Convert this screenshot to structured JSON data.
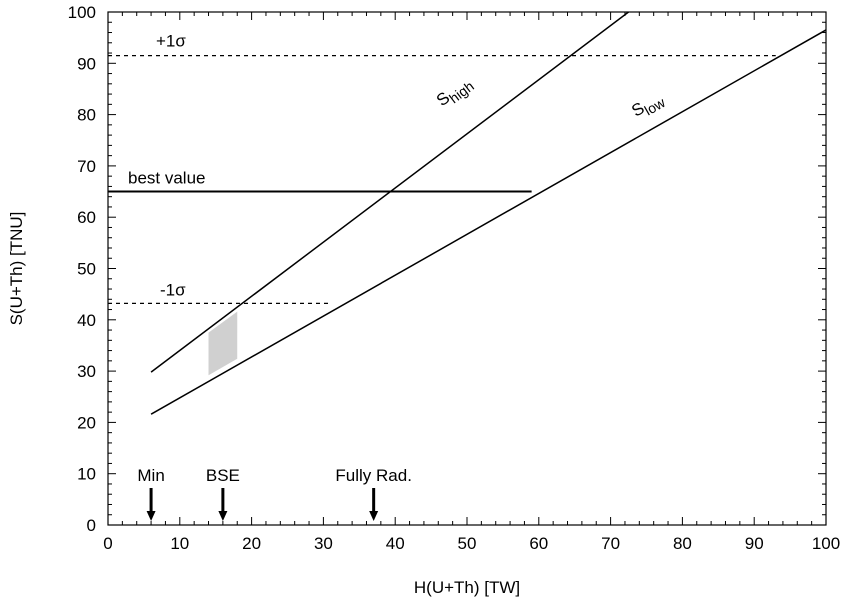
{
  "chart_data": {
    "type": "line",
    "xlabel": "H(U+Th) [TW]",
    "ylabel": "S(U+Th) [TNU]",
    "xlim": [
      0,
      100
    ],
    "ylim": [
      0,
      100
    ],
    "xticks": [
      0,
      10,
      20,
      30,
      40,
      50,
      60,
      70,
      80,
      90,
      100
    ],
    "yticks": [
      0,
      10,
      20,
      30,
      40,
      50,
      60,
      70,
      80,
      90,
      100
    ],
    "grid": false,
    "series": [
      {
        "name": "S_high",
        "label_main": "S",
        "label_sub": "high",
        "style": "solid",
        "x": [
          6,
          72.5
        ],
        "y": [
          29.8,
          100
        ]
      },
      {
        "name": "S_low",
        "label_main": "S",
        "label_sub": "low",
        "style": "solid",
        "x": [
          6,
          100
        ],
        "y": [
          21.6,
          96.5
        ]
      }
    ],
    "reference_lines": [
      {
        "label": "+1σ",
        "y": 91.5,
        "x_start": 0,
        "x_end": 93,
        "style": "dashed"
      },
      {
        "label": "best value",
        "y": 65,
        "x_start": 0,
        "x_end": 59,
        "style": "solid"
      },
      {
        "label": "-1σ",
        "y": 43.2,
        "x_start": 0,
        "x_end": 31,
        "style": "dashed"
      }
    ],
    "shaded_region": {
      "color": "#d0d0d0",
      "points": [
        [
          14,
          29.2
        ],
        [
          18,
          32.4
        ],
        [
          18,
          41.6
        ],
        [
          14,
          37.5
        ]
      ]
    },
    "arrows": [
      {
        "label": "Min",
        "x": 6
      },
      {
        "label": "BSE",
        "x": 16
      },
      {
        "label": "Fully Rad.",
        "x": 37
      }
    ]
  }
}
